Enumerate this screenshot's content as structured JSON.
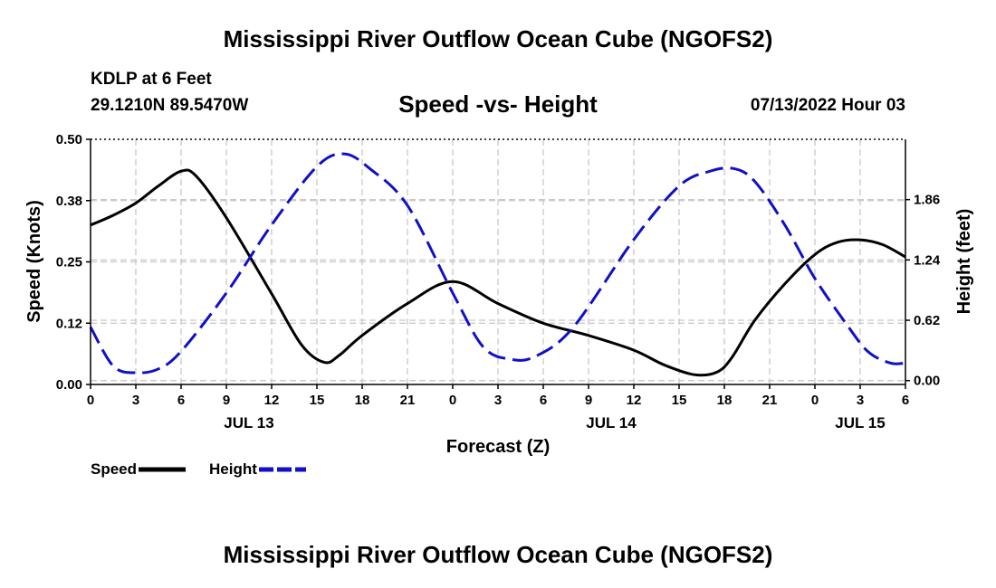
{
  "title": "Mississippi River Outflow Ocean Cube (NGOFS2)",
  "bottom_title": "Mississippi River Outflow Ocean Cube (NGOFS2)",
  "station": "KDLP at 6 Feet",
  "coords": "29.1210N  89.5470W",
  "subtitle": "Speed -vs- Height",
  "datetime": "07/13/2022 Hour 03",
  "colors": {
    "speed": "#000000",
    "height": "#1010c8",
    "grid": "#c8c8c8"
  },
  "legend": [
    {
      "name": "Speed",
      "color": "#000000",
      "style": "solid"
    },
    {
      "name": "Height",
      "color": "#1010c8",
      "style": "dashed"
    }
  ],
  "chart_data": {
    "type": "line",
    "xlabel": "Forecast (Z)",
    "ylabel_left": "Speed (Knots)",
    "ylabel_right": "Height (feet)",
    "x_hours_range": [
      0,
      54
    ],
    "x_ticks": [
      {
        "hour": 0,
        "label": "0"
      },
      {
        "hour": 3,
        "label": "3"
      },
      {
        "hour": 6,
        "label": "6"
      },
      {
        "hour": 9,
        "label": "9"
      },
      {
        "hour": 12,
        "label": "12"
      },
      {
        "hour": 15,
        "label": "15"
      },
      {
        "hour": 18,
        "label": "18"
      },
      {
        "hour": 21,
        "label": "21"
      },
      {
        "hour": 24,
        "label": "0"
      },
      {
        "hour": 27,
        "label": "3"
      },
      {
        "hour": 30,
        "label": "6"
      },
      {
        "hour": 33,
        "label": "9"
      },
      {
        "hour": 36,
        "label": "12"
      },
      {
        "hour": 39,
        "label": "15"
      },
      {
        "hour": 42,
        "label": "18"
      },
      {
        "hour": 45,
        "label": "21"
      },
      {
        "hour": 48,
        "label": "0"
      },
      {
        "hour": 51,
        "label": "3"
      },
      {
        "hour": 54,
        "label": "6"
      }
    ],
    "day_labels": [
      {
        "hour": 10.5,
        "label": "JUL 13"
      },
      {
        "hour": 34.5,
        "label": "JUL 14"
      },
      {
        "hour": 51,
        "label": "JUL 15"
      }
    ],
    "y_left": {
      "range": [
        0,
        0.5
      ],
      "ticks": [
        0,
        0.125,
        0.25,
        0.375,
        0.5
      ],
      "tick_labels": [
        "0.00",
        "0.12",
        "0.25",
        "0.38",
        "0.50"
      ]
    },
    "y_right": {
      "range": [
        -0.04,
        2.48
      ],
      "ticks": [
        0,
        0.62,
        1.24,
        1.86
      ],
      "tick_labels": [
        "0.00",
        "0.62",
        "1.24",
        "1.86"
      ]
    },
    "series": [
      {
        "name": "Speed",
        "axis": "left",
        "hours": [
          0,
          1.5,
          3,
          4.5,
          6,
          7,
          9,
          12,
          14,
          15.5,
          16.5,
          18,
          21,
          24,
          27,
          30,
          33,
          36,
          38,
          40,
          41.5,
          42.5,
          44,
          46,
          48,
          49.5,
          51,
          52.5,
          54
        ],
        "values": [
          0.325,
          0.345,
          0.37,
          0.405,
          0.435,
          0.425,
          0.34,
          0.185,
          0.08,
          0.045,
          0.06,
          0.1,
          0.165,
          0.21,
          0.165,
          0.125,
          0.1,
          0.07,
          0.04,
          0.02,
          0.025,
          0.055,
          0.13,
          0.205,
          0.265,
          0.29,
          0.295,
          0.285,
          0.26
        ]
      },
      {
        "name": "Height",
        "axis": "right",
        "hours": [
          0,
          1.5,
          3,
          4.5,
          6,
          9,
          12,
          15,
          16.8,
          18.5,
          21,
          24,
          26,
          27.8,
          29.5,
          32,
          36,
          39,
          41,
          42.6,
          44,
          46,
          48,
          50,
          51.5,
          53,
          54
        ],
        "values": [
          0.55,
          0.15,
          0.08,
          0.12,
          0.3,
          0.9,
          1.6,
          2.2,
          2.33,
          2.18,
          1.8,
          0.9,
          0.35,
          0.22,
          0.25,
          0.55,
          1.45,
          2.0,
          2.15,
          2.18,
          2.05,
          1.6,
          1.05,
          0.6,
          0.3,
          0.18,
          0.18
        ]
      }
    ]
  }
}
